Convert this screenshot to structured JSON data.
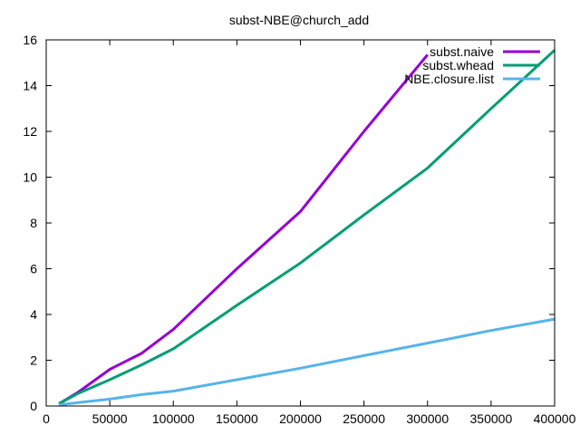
{
  "chart_data": {
    "type": "line",
    "title": "subst-NBE@church_add",
    "xlabel": "",
    "ylabel": "",
    "xlim": [
      0,
      400000
    ],
    "ylim": [
      0,
      16
    ],
    "xticks": [
      0,
      50000,
      100000,
      150000,
      200000,
      250000,
      300000,
      350000,
      400000
    ],
    "yticks": [
      0,
      2,
      4,
      6,
      8,
      10,
      12,
      14,
      16
    ],
    "grid": false,
    "legend_position": "top-right",
    "series": [
      {
        "name": "subst.naive",
        "color": "#9400d3",
        "x": [
          10000,
          25000,
          50000,
          75000,
          100000,
          150000,
          200000,
          250000,
          300000
        ],
        "y": [
          0.1,
          0.6,
          1.6,
          2.3,
          3.35,
          6.0,
          8.5,
          12.0,
          15.35
        ]
      },
      {
        "name": "subst.whead",
        "color": "#009e73",
        "x": [
          10000,
          25000,
          50000,
          75000,
          100000,
          150000,
          200000,
          250000,
          300000,
          350000,
          400000
        ],
        "y": [
          0.1,
          0.55,
          1.15,
          1.8,
          2.5,
          4.4,
          6.25,
          8.35,
          10.4,
          13.0,
          15.55
        ]
      },
      {
        "name": "NBE.closure.list",
        "color": "#56b4e9",
        "x": [
          10000,
          25000,
          50000,
          75000,
          100000,
          150000,
          200000,
          250000,
          300000,
          350000,
          400000
        ],
        "y": [
          0.05,
          0.15,
          0.3,
          0.5,
          0.65,
          1.15,
          1.65,
          2.2,
          2.75,
          3.3,
          3.8
        ]
      }
    ]
  }
}
